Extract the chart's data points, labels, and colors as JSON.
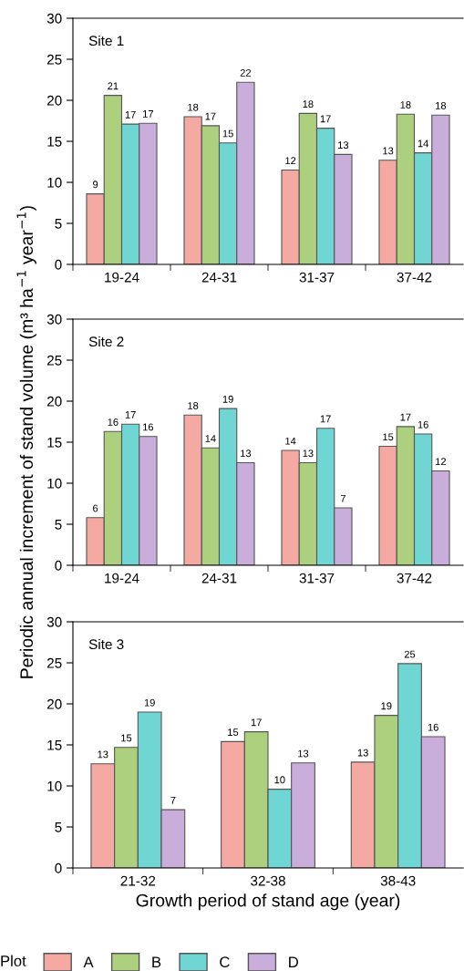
{
  "chart_data": [
    {
      "type": "bar",
      "title": "Site 1",
      "categories": [
        "19-24",
        "24-31",
        "31-37",
        "37-42"
      ],
      "ylim": [
        0,
        30
      ],
      "yticks": [
        0,
        5,
        10,
        15,
        20,
        25,
        30
      ],
      "series": [
        {
          "color": "#f4a9a3",
          "values": [
            8.6,
            18.0,
            11.5,
            12.7
          ],
          "value_labels": [
            "9",
            "18",
            "12",
            "13"
          ]
        },
        {
          "color": "#add07f",
          "values": [
            20.6,
            16.9,
            18.4,
            18.3
          ],
          "value_labels": [
            "21",
            "17",
            "18",
            "18"
          ]
        },
        {
          "color": "#6fd6d3",
          "values": [
            17.1,
            14.8,
            16.6,
            13.6
          ],
          "value_labels": [
            "17",
            "15",
            "17",
            "14"
          ]
        },
        {
          "color": "#c9aedb",
          "values": [
            17.2,
            22.2,
            13.4,
            18.2
          ],
          "value_labels": [
            "17",
            "22",
            "13",
            "18"
          ]
        }
      ]
    },
    {
      "type": "bar",
      "title": "Site 2",
      "ylabel": "Periodic annual increment of stand volume (m³ ha$^{−1}$ year$^{−1}$)",
      "categories": [
        "19-24",
        "24-31",
        "31-37",
        "37-42"
      ],
      "ylim": [
        0,
        30
      ],
      "yticks": [
        0,
        5,
        10,
        15,
        20,
        25,
        30
      ],
      "series": [
        {
          "color": "#f4a9a3",
          "values": [
            5.8,
            18.3,
            14.0,
            14.5
          ],
          "value_labels": [
            "6",
            "18",
            "14",
            "15"
          ]
        },
        {
          "color": "#add07f",
          "values": [
            16.3,
            14.3,
            12.5,
            16.9
          ],
          "value_labels": [
            "16",
            "14",
            "13",
            "17"
          ]
        },
        {
          "color": "#6fd6d3",
          "values": [
            17.2,
            19.1,
            16.7,
            16.0
          ],
          "value_labels": [
            "17",
            "19",
            "17",
            "16"
          ]
        },
        {
          "color": "#c9aedb",
          "values": [
            15.7,
            12.5,
            7.0,
            11.5
          ],
          "value_labels": [
            "16",
            "13",
            "7",
            "12"
          ]
        }
      ]
    },
    {
      "type": "bar",
      "title": "Site 3",
      "xlabel": "Growth period of stand age (year)",
      "categories": [
        "21-32",
        "32-38",
        "38-43"
      ],
      "ylim": [
        0,
        30
      ],
      "yticks": [
        0,
        5,
        10,
        15,
        20,
        25,
        30
      ],
      "legend": "bottom",
      "legend_title": "Plot",
      "series": [
        {
          "name": "A",
          "color": "#f4a9a3",
          "values": [
            12.7,
            15.4,
            12.9
          ],
          "value_labels": [
            "13",
            "15",
            "13"
          ]
        },
        {
          "name": "B",
          "color": "#add07f",
          "values": [
            14.7,
            16.6,
            18.6
          ],
          "value_labels": [
            "15",
            "17",
            "19"
          ]
        },
        {
          "name": "C",
          "color": "#6fd6d3",
          "values": [
            19.0,
            9.6,
            24.9
          ],
          "value_labels": [
            "19",
            "10",
            "25"
          ]
        },
        {
          "name": "D",
          "color": "#c9aedb",
          "values": [
            7.1,
            12.8,
            16.0
          ],
          "value_labels": [
            "7",
            "13",
            "16"
          ]
        }
      ]
    }
  ]
}
